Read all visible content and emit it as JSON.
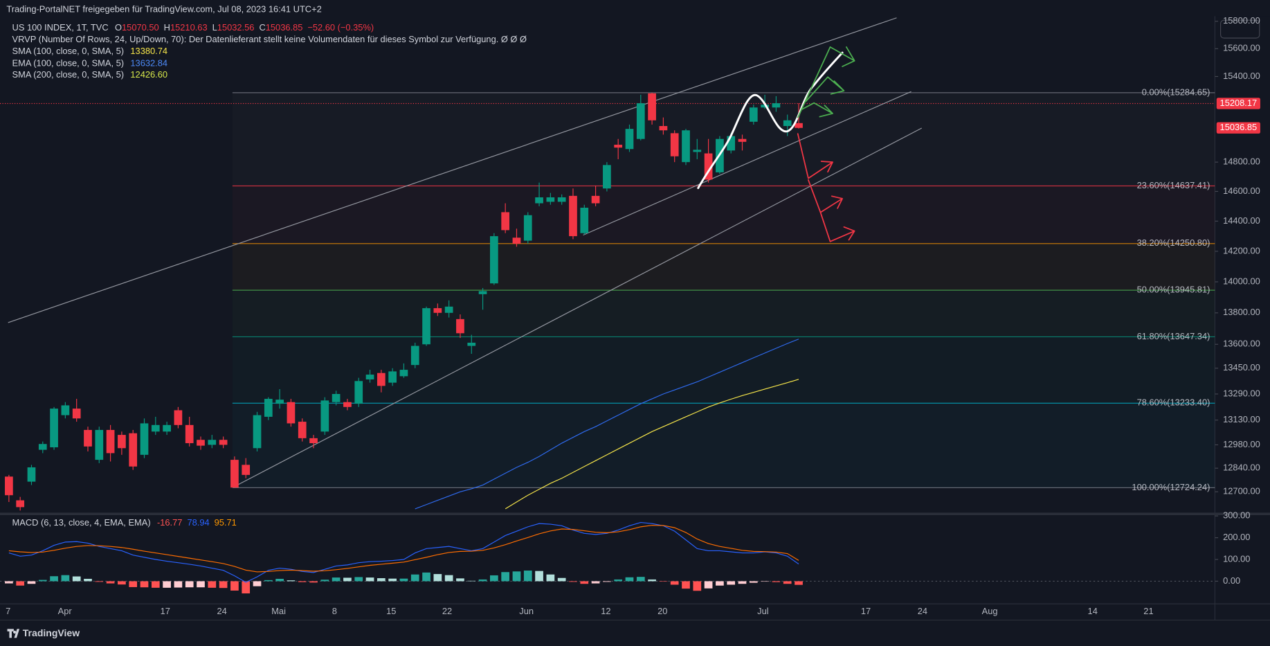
{
  "header": {
    "publisher": "Trading-PortalNET freigegeben für TradingView.com, Jul 08, 2023 16:41 UTC+2"
  },
  "footer": {
    "brand": "TradingView"
  },
  "chart_data": [
    {
      "type": "candlestick",
      "symbol": "US 100 INDEX, 1T, TVC",
      "ohlc_keys": [
        "O",
        "H",
        "L",
        "C"
      ],
      "ohlc_labels": [
        "15070.50",
        "15210.63",
        "15032.56",
        "15036.85"
      ],
      "change": "−52.60 (−0.35%)",
      "vrvp": "VRVP (Number Of Rows, 24, Up/Down, 70): Der Datenlieferant stellt keine Volumendaten für dieses Symbol zur Verfügung.  Ø  Ø  Ø",
      "log_scale": true,
      "ylim": [
        12580,
        15837
      ],
      "yticks": [
        {
          "value": 15800,
          "label": "15800.00"
        },
        {
          "value": 15600,
          "label": "15600.00"
        },
        {
          "value": 15400,
          "label": "15400.00"
        },
        {
          "value": 14800,
          "label": "14800.00"
        },
        {
          "value": 14600,
          "label": "14600.00"
        },
        {
          "value": 14400,
          "label": "14400.00"
        },
        {
          "value": 14200,
          "label": "14200.00"
        },
        {
          "value": 14000,
          "label": "14000.00"
        },
        {
          "value": 13800,
          "label": "13800.00"
        },
        {
          "value": 13600,
          "label": "13600.00"
        },
        {
          "value": 13450,
          "label": "13450.00"
        },
        {
          "value": 13290,
          "label": "13290.00"
        },
        {
          "value": 13130,
          "label": "13130.00"
        },
        {
          "value": 12980,
          "label": "12980.00"
        },
        {
          "value": 12840,
          "label": "12840.00"
        },
        {
          "value": 12700,
          "label": "12700.00"
        }
      ],
      "xlabels": [
        "7",
        "Apr",
        "17",
        "24",
        "Mai",
        "8",
        "15",
        "22",
        "Jun",
        "12",
        "20",
        "Jul",
        "17",
        "24",
        "Aug",
        "14",
        "21"
      ],
      "up_color": "#089981",
      "down_color": "#f23645",
      "open": [
        12790,
        12650,
        12760,
        12950,
        12965,
        13160,
        13200,
        13070,
        12890,
        13070,
        13040,
        13050,
        12920,
        13060,
        13060,
        13190,
        13100,
        13010,
        12980,
        13010,
        12890,
        12860,
        12960,
        13150,
        13230,
        13240,
        13120,
        13020,
        13060,
        13240,
        13240,
        13230,
        13380,
        13420,
        13360,
        13400,
        13470,
        13600,
        13830,
        13800,
        13760,
        13590,
        13920,
        13990,
        14460,
        14290,
        14270,
        14520,
        14530,
        14530,
        14570,
        14320,
        14570,
        14620,
        14920,
        14890,
        14960,
        15280,
        15050,
        15000,
        14800,
        14870,
        14860,
        14730,
        14880,
        14960,
        15080,
        15180,
        15180,
        15050,
        15070.5
      ],
      "high": [
        12800,
        12670,
        12860,
        13000,
        13210,
        13240,
        13260,
        13090,
        13090,
        13100,
        13060,
        13070,
        13140,
        13150,
        13120,
        13210,
        13150,
        13030,
        13040,
        13030,
        12910,
        12900,
        13180,
        13270,
        13320,
        13260,
        13140,
        13040,
        13270,
        13310,
        13260,
        13390,
        13440,
        13440,
        13450,
        13480,
        13610,
        13840,
        13860,
        13880,
        13790,
        13660,
        13960,
        14320,
        14520,
        14350,
        14460,
        14660,
        14590,
        14580,
        14620,
        14510,
        14640,
        14800,
        14960,
        15060,
        15270,
        15284.65,
        15110,
        15020,
        15030,
        14960,
        14960,
        14980,
        15000,
        14990,
        15200,
        15270,
        15260,
        15130,
        15210.63
      ],
      "low": [
        12640,
        12590,
        12740,
        12930,
        12950,
        13140,
        13120,
        12940,
        12870,
        12880,
        12920,
        12830,
        12900,
        13040,
        13040,
        13080,
        12970,
        12950,
        12960,
        12960,
        12724.24,
        12780,
        12940,
        13130,
        13200,
        13090,
        13000,
        12960,
        13040,
        13220,
        13190,
        13210,
        13360,
        13300,
        13340,
        13390,
        13450,
        13590,
        13780,
        13770,
        13640,
        13540,
        13820,
        13980,
        14320,
        14230,
        14250,
        14500,
        14510,
        14510,
        14280,
        14310,
        14500,
        14600,
        14820,
        14870,
        14950,
        15060,
        14990,
        14800,
        14780,
        14820,
        14660,
        14720,
        14860,
        14880,
        15060,
        15170,
        15150,
        14980,
        15032.56
      ],
      "close": [
        12680,
        12610,
        12845,
        12985,
        13200,
        13220,
        13140,
        12970,
        13070,
        12930,
        12960,
        12850,
        13110,
        13100,
        13100,
        13100,
        12990,
        12975,
        13010,
        12980,
        12725,
        12800,
        13160,
        13260,
        13255,
        13110,
        13020,
        12990,
        13250,
        13290,
        13210,
        13370,
        13410,
        13340,
        13430,
        13440,
        13590,
        13830,
        13800,
        13840,
        13670,
        13610,
        13940,
        14300,
        14340,
        14250,
        14440,
        14560,
        14560,
        14560,
        14300,
        14490,
        14520,
        14780,
        14900,
        15030,
        15210,
        15090,
        15020,
        14840,
        15020,
        14885,
        14680,
        14960,
        14980,
        14940,
        15180,
        15200,
        15210,
        15090,
        15036.85
      ],
      "price_line": {
        "value": 15208.17,
        "color": "#f23645"
      },
      "indicators": [
        {
          "name": "SMA (100, close, 0, SMA, 5)",
          "color": "#f7e64a",
          "values": [
            null,
            null,
            null,
            null,
            null,
            null,
            null,
            null,
            null,
            null,
            null,
            null,
            null,
            null,
            null,
            null,
            null,
            null,
            null,
            null,
            null,
            null,
            null,
            null,
            null,
            null,
            null,
            null,
            null,
            null,
            null,
            null,
            null,
            null,
            null,
            null,
            null,
            null,
            null,
            null,
            null,
            null,
            null,
            null,
            12600,
            12640,
            12680,
            12715,
            12750,
            12780,
            12815,
            12850,
            12885,
            12920,
            12955,
            12990,
            13025,
            13060,
            13090,
            13120,
            13150,
            13180,
            13210,
            13235,
            13258,
            13280,
            13300,
            13320,
            13340,
            13360,
            13380.74
          ]
        },
        {
          "name": "EMA (100, close, 0, SMA, 5)",
          "color": "#2f6bf0",
          "values": [
            null,
            null,
            null,
            null,
            null,
            null,
            null,
            null,
            null,
            null,
            null,
            null,
            null,
            null,
            null,
            null,
            null,
            null,
            null,
            null,
            null,
            null,
            null,
            null,
            null,
            null,
            null,
            null,
            null,
            null,
            null,
            null,
            null,
            null,
            null,
            null,
            12600,
            12625,
            12650,
            12675,
            12700,
            12718,
            12740,
            12775,
            12810,
            12845,
            12875,
            12910,
            12950,
            12990,
            13025,
            13060,
            13090,
            13125,
            13160,
            13195,
            13230,
            13260,
            13290,
            13315,
            13340,
            13365,
            13395,
            13425,
            13455,
            13485,
            13515,
            13545,
            13575,
            13605,
            13632.84
          ]
        },
        {
          "name": "SMA (200, close, 0, SMA, 5)",
          "color": "#d7e84a",
          "label": "12426.60"
        }
      ],
      "fib_levels": [
        {
          "price": 15284.65,
          "label": "0.00%(15284.65)",
          "color": "#787b86"
        },
        {
          "price": 14637.41,
          "label": "23.60%(14637.41)",
          "color": "#f23645"
        },
        {
          "price": 14250.8,
          "label": "38.20%(14250.80)",
          "color": "#ff9800"
        },
        {
          "price": 13945.81,
          "label": "50.00%(13945.81)",
          "color": "#4caf50"
        },
        {
          "price": 13647.34,
          "label": "61.80%(13647.34)",
          "color": "#089981"
        },
        {
          "price": 13233.4,
          "label": "78.60%(13233.40)",
          "color": "#00bcd4"
        },
        {
          "price": 12724.24,
          "label": "100.00%(12724.24)",
          "color": "#787b86"
        }
      ]
    },
    {
      "type": "macd",
      "title": "MACD (6, 13, close, 4, EMA, EMA)",
      "ylim": [
        -104,
        302
      ],
      "yticks": [
        {
          "value": 300,
          "label": "300.00"
        },
        {
          "value": 200,
          "label": "200.00"
        },
        {
          "value": 100,
          "label": "100.00"
        },
        {
          "value": 0,
          "label": "0.00"
        }
      ],
      "zero_line": true,
      "macd_color": "#2962ff",
      "signal_color": "#ff6d00",
      "histogram_colors": [
        "#26a69a",
        "#b2dfdb",
        "#ff5252",
        "#ffcdd2"
      ],
      "macd": [
        130,
        115,
        120,
        140,
        165,
        180,
        182,
        175,
        160,
        150,
        140,
        120,
        110,
        100,
        92,
        85,
        78,
        70,
        60,
        50,
        25,
        -5,
        20,
        50,
        60,
        55,
        45,
        40,
        55,
        70,
        75,
        85,
        90,
        92,
        95,
        100,
        130,
        150,
        155,
        160,
        150,
        140,
        150,
        180,
        210,
        230,
        250,
        265,
        262,
        255,
        235,
        220,
        215,
        220,
        235,
        255,
        270,
        265,
        255,
        230,
        190,
        150,
        140,
        140,
        135,
        130,
        130,
        135,
        130,
        115,
        78.94
      ],
      "signal": [
        140,
        135,
        132,
        134,
        142,
        152,
        160,
        164,
        163,
        160,
        155,
        147,
        138,
        130,
        122,
        114,
        106,
        98,
        90,
        81,
        68,
        51,
        43,
        45,
        49,
        51,
        49,
        46,
        48,
        53,
        59,
        66,
        73,
        78,
        83,
        88,
        99,
        110,
        122,
        132,
        137,
        138,
        142,
        153,
        168,
        185,
        201,
        218,
        231,
        240,
        238,
        232,
        225,
        223,
        227,
        237,
        250,
        257,
        256,
        246,
        224,
        194,
        173,
        160,
        151,
        142,
        137,
        136,
        134,
        127,
        95.71
      ],
      "histogram": [
        -10,
        -20,
        -12,
        6,
        23,
        28,
        22,
        11,
        -3,
        -10,
        -15,
        -27,
        -28,
        -30,
        -30,
        -29,
        -28,
        -28,
        -30,
        -31,
        -43,
        -56,
        -23,
        5,
        11,
        4,
        -4,
        -6,
        7,
        17,
        16,
        19,
        17,
        14,
        12,
        12,
        31,
        40,
        33,
        28,
        13,
        2,
        8,
        27,
        42,
        45,
        49,
        47,
        31,
        15,
        -3,
        -12,
        -10,
        -3,
        8,
        18,
        20,
        8,
        -1,
        -16,
        -34,
        -44,
        -33,
        -20,
        -16,
        -12,
        -7,
        -1,
        -4,
        -12,
        -16.77
      ]
    }
  ]
}
